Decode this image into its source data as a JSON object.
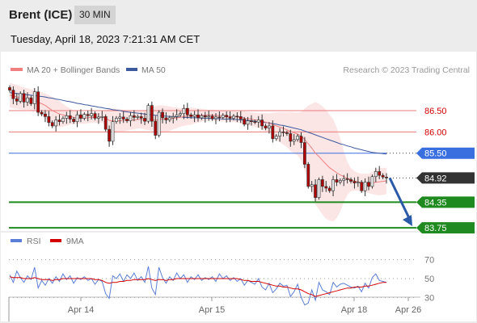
{
  "header": {
    "instrument": "Brent (ICE)",
    "timeframe": "30 MIN",
    "timestamp": "Tuesday, April 18, 2023 7:21:31 AM CET"
  },
  "colors": {
    "ma20": "#f08080",
    "ma50": "#3d5a9e",
    "resistance": "#e87a7a",
    "pivot": "#3a6fe0",
    "support": "#1f8a1f",
    "current_price": "#333333",
    "rsi": "#5b7fd6",
    "rsi_ma": "#d40000",
    "arrow": "#2b5aa8",
    "candle_up": "#e7e7e7",
    "candle_down": "#b00000"
  },
  "chart_data": [
    {
      "type": "candlestick",
      "legend": [
        {
          "label": "MA 20 + Bollinger Bands",
          "color": "#f08080"
        },
        {
          "label": "MA 50",
          "color": "#3d5a9e"
        }
      ],
      "legend_position": "top-left",
      "credit": "Research © 2023 Trading Central",
      "ylim": [
        83.6,
        87.2
      ],
      "x_ticks": [
        "Apr 14",
        "Apr 15",
        "Apr 18",
        "Apr 26"
      ],
      "levels": [
        {
          "value": 86.5,
          "label": "86.50",
          "kind": "resistance"
        },
        {
          "value": 86.0,
          "label": "86.00",
          "kind": "resistance"
        },
        {
          "value": 85.5,
          "label": "85.50",
          "kind": "pivot"
        },
        {
          "value": 84.92,
          "label": "84.92",
          "kind": "current"
        },
        {
          "value": 84.35,
          "label": "84.35",
          "kind": "support"
        },
        {
          "value": 83.75,
          "label": "83.75",
          "kind": "support"
        }
      ],
      "close": [
        86.98,
        86.78,
        86.72,
        86.9,
        86.7,
        86.8,
        86.66,
        86.94,
        86.46,
        86.42,
        86.36,
        86.22,
        86.14,
        86.28,
        86.24,
        86.32,
        86.38,
        86.3,
        86.24,
        86.4,
        86.32,
        86.41,
        86.38,
        86.43,
        86.32,
        86.35,
        86.36,
        86.06,
        85.78,
        86.24,
        86.32,
        86.35,
        86.3,
        86.26,
        86.38,
        86.34,
        86.36,
        86.32,
        86.25,
        86.62,
        86.25,
        85.92,
        86.46,
        86.33,
        86.28,
        86.33,
        86.36,
        86.4,
        86.43,
        86.55,
        86.4,
        86.36,
        86.4,
        86.33,
        86.38,
        86.35,
        86.37,
        86.31,
        86.35,
        86.34,
        86.39,
        86.35,
        86.32,
        86.37,
        86.36,
        86.3,
        86.18,
        86.26,
        86.24,
        86.23,
        86.28,
        86.14,
        86.09,
        86.14,
        85.84,
        85.9,
        86.0,
        85.98,
        85.96,
        85.78,
        85.82,
        85.9,
        85.75,
        85.24,
        84.72,
        84.76,
        84.46,
        84.88,
        84.72,
        84.68,
        84.62,
        84.88,
        84.82,
        84.86,
        84.9,
        84.88,
        84.84,
        84.8,
        84.82,
        84.62,
        84.82,
        84.72,
        84.95,
        85.07,
        84.98,
        84.94,
        84.92
      ],
      "ma20": [
        86.86,
        86.84,
        86.82,
        86.8,
        86.78,
        86.77,
        86.76,
        86.74,
        86.7,
        86.66,
        86.62,
        86.56,
        86.5,
        86.46,
        86.42,
        86.4,
        86.38,
        86.36,
        86.34,
        86.33,
        86.32,
        86.32,
        86.33,
        86.34,
        86.34,
        86.34,
        86.35,
        86.32,
        86.27,
        86.26,
        86.26,
        86.26,
        86.27,
        86.27,
        86.28,
        86.28,
        86.29,
        86.29,
        86.28,
        86.3,
        86.3,
        86.27,
        86.29,
        86.3,
        86.3,
        86.31,
        86.32,
        86.33,
        86.34,
        86.36,
        86.37,
        86.37,
        86.38,
        86.38,
        86.39,
        86.39,
        86.4,
        86.39,
        86.39,
        86.38,
        86.38,
        86.37,
        86.36,
        86.36,
        86.35,
        86.34,
        86.32,
        86.31,
        86.3,
        86.28,
        86.27,
        86.25,
        86.23,
        86.21,
        86.17,
        86.14,
        86.11,
        86.08,
        86.05,
        86.01,
        85.98,
        85.95,
        85.9,
        85.82,
        85.72,
        85.62,
        85.5,
        85.42,
        85.33,
        85.24,
        85.16,
        85.1,
        85.04,
        84.99,
        84.95,
        84.91,
        84.88,
        84.85,
        84.83,
        84.8,
        84.8,
        84.79,
        84.8,
        84.82,
        84.83,
        84.84,
        84.85
      ],
      "bb_upper": [
        87.15,
        87.13,
        87.1,
        87.07,
        87.04,
        87.02,
        87.0,
        86.98,
        86.96,
        86.93,
        86.9,
        86.86,
        86.82,
        86.77,
        86.72,
        86.66,
        86.6,
        86.55,
        86.5,
        86.47,
        86.45,
        86.45,
        86.46,
        86.47,
        86.47,
        86.47,
        86.47,
        86.5,
        86.55,
        86.55,
        86.54,
        86.53,
        86.52,
        86.51,
        86.5,
        86.5,
        86.5,
        86.5,
        86.5,
        86.56,
        86.58,
        86.6,
        86.62,
        86.62,
        86.61,
        86.6,
        86.58,
        86.57,
        86.56,
        86.58,
        86.58,
        86.57,
        86.56,
        86.55,
        86.54,
        86.53,
        86.52,
        86.52,
        86.52,
        86.51,
        86.51,
        86.5,
        86.49,
        86.49,
        86.48,
        86.48,
        86.48,
        86.47,
        86.46,
        86.45,
        86.44,
        86.44,
        86.44,
        86.43,
        86.45,
        86.46,
        86.46,
        86.46,
        86.46,
        86.47,
        86.46,
        86.45,
        86.47,
        86.55,
        86.62,
        86.66,
        86.7,
        86.66,
        86.6,
        86.52,
        86.4,
        86.3,
        86.1,
        85.85,
        85.55,
        85.3,
        85.15,
        85.08,
        85.04,
        85.02,
        85.02,
        85.02,
        85.06,
        85.12,
        85.15,
        85.16,
        85.16
      ],
      "bb_lower": [
        86.57,
        86.55,
        86.54,
        86.53,
        86.52,
        86.52,
        86.51,
        86.5,
        86.44,
        86.38,
        86.32,
        86.25,
        86.18,
        86.14,
        86.11,
        86.12,
        86.15,
        86.17,
        86.18,
        86.19,
        86.19,
        86.19,
        86.2,
        86.21,
        86.21,
        86.21,
        86.22,
        86.14,
        85.99,
        85.97,
        85.98,
        85.99,
        86.01,
        86.03,
        86.05,
        86.06,
        86.08,
        86.08,
        86.06,
        86.04,
        86.02,
        85.94,
        85.96,
        85.98,
        86.0,
        86.02,
        86.06,
        86.09,
        86.12,
        86.14,
        86.16,
        86.17,
        86.2,
        86.21,
        86.24,
        86.25,
        86.28,
        86.26,
        86.26,
        86.25,
        86.25,
        86.24,
        86.23,
        86.23,
        86.22,
        86.2,
        86.16,
        86.15,
        86.14,
        86.11,
        86.1,
        86.06,
        86.02,
        85.99,
        85.89,
        85.82,
        85.76,
        85.7,
        85.64,
        85.55,
        85.5,
        85.45,
        85.33,
        85.09,
        84.82,
        84.58,
        84.3,
        84.18,
        84.06,
        83.96,
        83.92,
        83.9,
        83.98,
        84.13,
        84.35,
        84.52,
        84.61,
        84.62,
        84.62,
        84.58,
        84.58,
        84.56,
        84.54,
        84.52,
        84.51,
        84.52,
        84.54
      ],
      "ma50": [
        86.92,
        86.91,
        86.9,
        86.89,
        86.88,
        86.87,
        86.86,
        86.85,
        86.84,
        86.83,
        86.82,
        86.8,
        86.79,
        86.77,
        86.76,
        86.74,
        86.72,
        86.71,
        86.69,
        86.67,
        86.66,
        86.64,
        86.63,
        86.61,
        86.6,
        86.58,
        86.57,
        86.55,
        86.54,
        86.52,
        86.51,
        86.5,
        86.48,
        86.47,
        86.46,
        86.45,
        86.44,
        86.43,
        86.42,
        86.41,
        86.4,
        86.39,
        86.38,
        86.37,
        86.37,
        86.36,
        86.36,
        86.35,
        86.35,
        86.34,
        86.34,
        86.33,
        86.33,
        86.33,
        86.32,
        86.32,
        86.32,
        86.31,
        86.31,
        86.31,
        86.3,
        86.3,
        86.3,
        86.29,
        86.29,
        86.28,
        86.28,
        86.27,
        86.26,
        86.25,
        86.24,
        86.23,
        86.22,
        86.21,
        86.19,
        86.18,
        86.16,
        86.15,
        86.13,
        86.11,
        86.09,
        86.07,
        86.05,
        86.02,
        85.99,
        85.96,
        85.93,
        85.9,
        85.87,
        85.84,
        85.81,
        85.78,
        85.75,
        85.72,
        85.7,
        85.67,
        85.65,
        85.62,
        85.6,
        85.58,
        85.56,
        85.54,
        85.52,
        85.51,
        85.5,
        85.49,
        85.48
      ]
    },
    {
      "type": "line",
      "legend": [
        {
          "label": "RSI",
          "color": "#5b7fd6"
        },
        {
          "label": "9MA",
          "color": "#d40000"
        }
      ],
      "ylim": [
        20,
        80
      ],
      "y_ticks": [
        "70",
        "50",
        "30"
      ],
      "series": [
        {
          "name": "RSI",
          "values": [
            54,
            46,
            58,
            51,
            46,
            53,
            49,
            62,
            40,
            48,
            43,
            50,
            45,
            52,
            47,
            55,
            49,
            53,
            45,
            51,
            49,
            52,
            48,
            50,
            44,
            49,
            47,
            34,
            29,
            53,
            50,
            55,
            47,
            54,
            50,
            56,
            48,
            52,
            46,
            63,
            40,
            33,
            62,
            51,
            45,
            52,
            48,
            56,
            50,
            54,
            46,
            52,
            49,
            54,
            48,
            51,
            49,
            52,
            47,
            55,
            50,
            53,
            48,
            51,
            47,
            50,
            43,
            48,
            46,
            44,
            50,
            41,
            38,
            45,
            35,
            39,
            45,
            42,
            43,
            31,
            36,
            44,
            30,
            22,
            24,
            38,
            27,
            46,
            38,
            36,
            33,
            46,
            41,
            44,
            45,
            43,
            41,
            40,
            42,
            36,
            45,
            40,
            51,
            55,
            48,
            47,
            46
          ]
        },
        {
          "name": "9MA",
          "values": [
            52,
            51,
            51,
            51,
            50,
            50,
            50,
            51,
            50,
            49,
            49,
            49,
            48,
            49,
            49,
            50,
            50,
            50,
            50,
            50,
            50,
            50,
            50,
            50,
            49,
            49,
            48,
            46,
            45,
            46,
            46,
            47,
            47,
            48,
            48,
            49,
            49,
            49,
            49,
            50,
            49,
            48,
            49,
            49,
            48,
            49,
            49,
            50,
            50,
            50,
            50,
            50,
            50,
            50,
            50,
            50,
            50,
            50,
            50,
            50,
            50,
            50,
            50,
            50,
            50,
            49,
            48,
            48,
            47,
            47,
            47,
            46,
            45,
            44,
            43,
            42,
            42,
            41,
            41,
            40,
            39,
            39,
            38,
            36,
            34,
            33,
            31,
            32,
            33,
            34,
            35,
            36,
            37,
            38,
            39,
            40,
            40,
            41,
            41,
            41,
            42,
            42,
            43,
            44,
            45,
            46,
            46
          ]
        }
      ]
    }
  ]
}
